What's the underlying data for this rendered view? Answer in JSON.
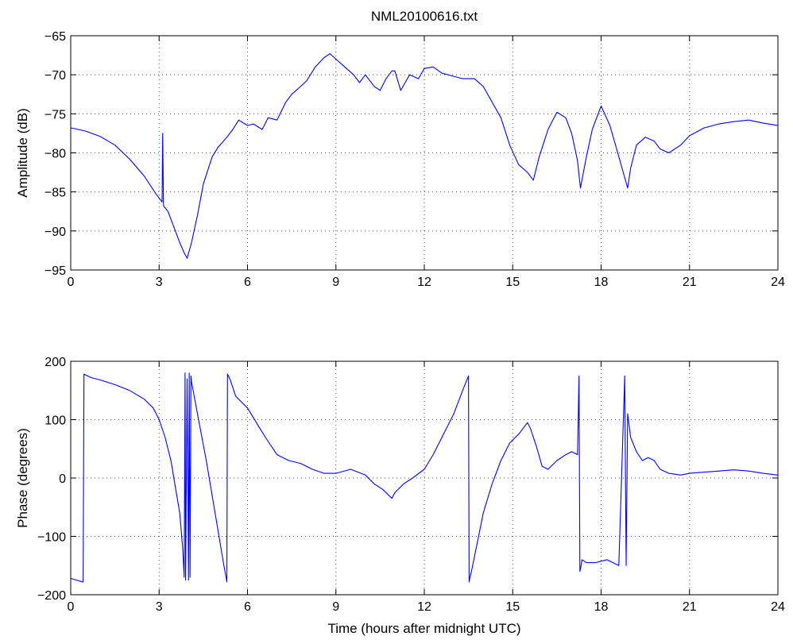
{
  "figure": {
    "title": "NML20100616.txt"
  },
  "colors": {
    "series": "#0000ff",
    "axes": "#000000",
    "background": "#ffffff"
  },
  "chart_data": [
    {
      "type": "line",
      "title": "NML20100616.txt",
      "xlabel": "",
      "ylabel": "Amplitude (dB)",
      "xlim": [
        0,
        24
      ],
      "ylim": [
        -95,
        -65
      ],
      "xticks": [
        0,
        3,
        6,
        9,
        12,
        15,
        18,
        21,
        24
      ],
      "xtick_labels": [
        "0",
        "3",
        "6",
        "9",
        "12",
        "15",
        "18",
        "21",
        "24"
      ],
      "yticks": [
        -95,
        -90,
        -85,
        -80,
        -75,
        -70,
        -65
      ],
      "ytick_labels": [
        "−95",
        "−90",
        "−85",
        "−80",
        "−75",
        "−70",
        "−65"
      ],
      "grid": true,
      "series": [
        {
          "x": [
            0,
            0.5,
            1.0,
            1.5,
            2.0,
            2.5,
            2.9,
            3.1,
            3.12,
            3.15,
            3.3,
            3.5,
            3.7,
            3.85,
            3.95,
            4.1,
            4.3,
            4.5,
            4.8,
            5.0,
            5.3,
            5.5,
            5.7,
            6.0,
            6.2,
            6.5,
            6.7,
            7.0,
            7.3,
            7.5,
            7.8,
            8.0,
            8.3,
            8.6,
            8.8,
            9.0,
            9.3,
            9.6,
            9.8,
            10.0,
            10.3,
            10.5,
            10.7,
            10.9,
            11.0,
            11.2,
            11.5,
            11.8,
            12.0,
            12.3,
            12.6,
            13.0,
            13.3,
            13.7,
            14.0,
            14.3,
            14.6,
            14.9,
            15.2,
            15.5,
            15.7,
            15.9,
            16.2,
            16.5,
            16.8,
            17.0,
            17.2,
            17.3,
            17.5,
            17.7,
            18.0,
            18.3,
            18.6,
            18.9,
            19.0,
            19.2,
            19.5,
            19.8,
            20.0,
            20.3,
            20.7,
            21.0,
            21.5,
            22.0,
            22.5,
            23.0,
            23.5,
            24.0
          ],
          "y": [
            -76.8,
            -77.2,
            -77.9,
            -79.0,
            -80.8,
            -83.0,
            -85.3,
            -86.3,
            -77.5,
            -86.8,
            -87.5,
            -89.5,
            -91.5,
            -92.8,
            -93.5,
            -91.5,
            -88.0,
            -84.0,
            -80.5,
            -79.3,
            -78.0,
            -77.0,
            -75.8,
            -76.5,
            -76.3,
            -77.0,
            -75.5,
            -75.8,
            -73.5,
            -72.5,
            -71.5,
            -70.8,
            -69.0,
            -67.8,
            -67.3,
            -68.0,
            -69.0,
            -70.0,
            -71.0,
            -70.0,
            -71.5,
            -72.0,
            -70.5,
            -69.5,
            -69.5,
            -72.0,
            -70.0,
            -70.5,
            -69.2,
            -69.0,
            -69.8,
            -70.2,
            -70.5,
            -70.5,
            -71.5,
            -73.5,
            -75.5,
            -79.0,
            -81.5,
            -82.5,
            -83.5,
            -80.5,
            -77.0,
            -74.8,
            -75.5,
            -77.5,
            -81.0,
            -84.5,
            -80.5,
            -77.0,
            -74.0,
            -76.5,
            -80.5,
            -84.5,
            -82.0,
            -79.0,
            -78.0,
            -78.5,
            -79.5,
            -80.0,
            -79.0,
            -77.8,
            -76.8,
            -76.3,
            -76.0,
            -75.8,
            -76.2,
            -76.5
          ]
        }
      ]
    },
    {
      "type": "line",
      "title": "",
      "xlabel": "Time (hours after midnight UTC)",
      "ylabel": "Phase (degrees)",
      "xlim": [
        0,
        24
      ],
      "ylim": [
        -200,
        200
      ],
      "xticks": [
        0,
        3,
        6,
        9,
        12,
        15,
        18,
        21,
        24
      ],
      "xtick_labels": [
        "0",
        "3",
        "6",
        "9",
        "12",
        "15",
        "18",
        "21",
        "24"
      ],
      "yticks": [
        -200,
        -100,
        0,
        100,
        200
      ],
      "ytick_labels": [
        "−200",
        "−100",
        "0",
        "100",
        "200"
      ],
      "grid": true,
      "series": [
        {
          "x": [
            0,
            0.2,
            0.4,
            0.42,
            0.45,
            0.7,
            1.0,
            1.5,
            2.0,
            2.5,
            2.8,
            3.0,
            3.2,
            3.3,
            3.4,
            3.5,
            3.7,
            3.8,
            3.85,
            3.88,
            3.9,
            3.95,
            4.0,
            4.02,
            4.05,
            4.08,
            4.1,
            4.3,
            4.6,
            4.9,
            5.2,
            5.3,
            5.32,
            5.4,
            5.6,
            5.8,
            6.0,
            6.3,
            6.6,
            7.0,
            7.4,
            7.8,
            8.2,
            8.6,
            9.0,
            9.5,
            10.0,
            10.3,
            10.6,
            10.9,
            11.0,
            11.3,
            11.6,
            12.0,
            12.3,
            12.6,
            13.0,
            13.3,
            13.5,
            13.52,
            13.55,
            13.6,
            13.8,
            14.0,
            14.3,
            14.6,
            14.9,
            15.2,
            15.5,
            15.6,
            15.8,
            16.0,
            16.2,
            16.5,
            16.8,
            17.0,
            17.2,
            17.25,
            17.28,
            17.32,
            17.35,
            17.5,
            17.8,
            18.2,
            18.6,
            18.8,
            18.85,
            18.9,
            19.0,
            19.2,
            19.4,
            19.6,
            19.8,
            20.0,
            20.3,
            20.7,
            21.0,
            21.5,
            22.0,
            22.5,
            23.0,
            23.5,
            24.0
          ],
          "y": [
            -172,
            -175,
            -178,
            -178,
            178,
            172,
            168,
            160,
            150,
            135,
            120,
            100,
            70,
            50,
            30,
            0,
            -60,
            -120,
            -170,
            180,
            -175,
            170,
            -175,
            180,
            -170,
            175,
            165,
            110,
            30,
            -60,
            -150,
            -178,
            178,
            170,
            140,
            130,
            120,
            95,
            70,
            40,
            30,
            25,
            15,
            8,
            8,
            15,
            5,
            -10,
            -20,
            -35,
            -25,
            -10,
            0,
            15,
            40,
            70,
            110,
            150,
            175,
            -178,
            -170,
            -160,
            -110,
            -60,
            -10,
            30,
            60,
            75,
            95,
            85,
            55,
            20,
            15,
            30,
            40,
            45,
            40,
            175,
            -160,
            -150,
            -140,
            -145,
            -145,
            -140,
            -150,
            175,
            -150,
            110,
            70,
            45,
            30,
            35,
            30,
            15,
            8,
            5,
            8,
            10,
            12,
            14,
            12,
            8,
            5
          ]
        }
      ]
    }
  ]
}
